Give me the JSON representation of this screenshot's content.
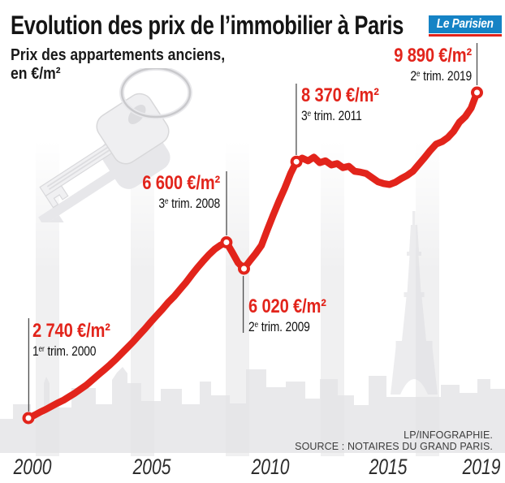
{
  "header": {
    "title": "Evolution des prix de l’immobilier à Paris",
    "subtitle_line1": "Prix des appartements anciens,",
    "subtitle_line2": "en €/m²",
    "logo_text": "Le Parisien"
  },
  "annotations": [
    {
      "price": "2 740 €/m²",
      "num": "1",
      "sup": "er",
      "rest": " trim. 2000"
    },
    {
      "price": "6 600 €/m²",
      "num": "3",
      "sup": "e",
      "rest": " trim. 2008"
    },
    {
      "price": "6 020 €/m²",
      "num": "2",
      "sup": "e",
      "rest": " trim. 2009"
    },
    {
      "price": "8 370 €/m²",
      "num": "3",
      "sup": "e",
      "rest": " trim. 2011"
    },
    {
      "price": "9 890 €/m²",
      "num": "2",
      "sup": "e",
      "rest": " trim. 2019"
    }
  ],
  "axis": {
    "labels": [
      "2000",
      "2005",
      "2010",
      "2015",
      "2019"
    ]
  },
  "credits": {
    "line1": "LP/INFOGRAPHIE.",
    "line2": "SOURCE : NOTAIRES DU GRAND PARIS."
  },
  "colors": {
    "accent_red": "#e2241b",
    "logo_blue": "#1583c5",
    "text_dark": "#151515",
    "leader_line": "#4d4d4d",
    "stripe_gray": "#f0f0f1",
    "skyline_gray": "#e3e3e6"
  },
  "illustrations": {
    "keys": "house-keys-with-ring",
    "background": "paris-skyline-with-eiffel-tower"
  },
  "chart_data": {
    "type": "line",
    "title": "Evolution des prix de l’immobilier à Paris",
    "subtitle": "Prix des appartements anciens, en €/m²",
    "ylabel": "€/m²",
    "x_range": [
      2000,
      2019.25
    ],
    "y_range_displayed": [
      2740,
      9890
    ],
    "grid": false,
    "legend": "none",
    "xticks": [
      "2000",
      "2005",
      "2010",
      "2015",
      "2019"
    ],
    "source": "SOURCE : NOTAIRES DU GRAND PARIS.",
    "line_color": "#e2241b",
    "annotated_points": [
      {
        "label": "1er trim. 2000",
        "x": 2000.0,
        "y": 2740
      },
      {
        "label": "3e trim. 2008",
        "x": 2008.5,
        "y": 6600
      },
      {
        "label": "2e trim. 2009",
        "x": 2009.25,
        "y": 6020
      },
      {
        "label": "3e trim. 2011",
        "x": 2011.5,
        "y": 8370
      },
      {
        "label": "2e trim. 2019",
        "x": 2019.25,
        "y": 9890
      }
    ],
    "series": [
      {
        "name": "Prix des appartements anciens (€/m²)",
        "points": [
          [
            2000.0,
            2740
          ],
          [
            2000.25,
            2800
          ],
          [
            2000.5,
            2870
          ],
          [
            2000.75,
            2930
          ],
          [
            2001.0,
            3000
          ],
          [
            2001.25,
            3070
          ],
          [
            2001.5,
            3130
          ],
          [
            2001.75,
            3210
          ],
          [
            2002.0,
            3290
          ],
          [
            2002.25,
            3380
          ],
          [
            2002.5,
            3470
          ],
          [
            2002.75,
            3580
          ],
          [
            2003.0,
            3690
          ],
          [
            2003.25,
            3800
          ],
          [
            2003.5,
            3910
          ],
          [
            2003.75,
            4030
          ],
          [
            2004.0,
            4160
          ],
          [
            2004.25,
            4290
          ],
          [
            2004.5,
            4420
          ],
          [
            2004.75,
            4560
          ],
          [
            2005.0,
            4700
          ],
          [
            2005.25,
            4850
          ],
          [
            2005.5,
            4990
          ],
          [
            2005.75,
            5130
          ],
          [
            2006.0,
            5280
          ],
          [
            2006.25,
            5410
          ],
          [
            2006.5,
            5560
          ],
          [
            2006.75,
            5710
          ],
          [
            2007.0,
            5880
          ],
          [
            2007.25,
            6040
          ],
          [
            2007.5,
            6190
          ],
          [
            2007.75,
            6330
          ],
          [
            2008.0,
            6450
          ],
          [
            2008.25,
            6540
          ],
          [
            2008.5,
            6600
          ],
          [
            2008.75,
            6380
          ],
          [
            2009.0,
            6150
          ],
          [
            2009.25,
            6020
          ],
          [
            2009.5,
            6190
          ],
          [
            2009.75,
            6350
          ],
          [
            2010.0,
            6530
          ],
          [
            2010.25,
            6870
          ],
          [
            2010.5,
            7190
          ],
          [
            2010.75,
            7500
          ],
          [
            2011.0,
            7790
          ],
          [
            2011.25,
            8110
          ],
          [
            2011.5,
            8370
          ],
          [
            2011.75,
            8450
          ],
          [
            2012.0,
            8390
          ],
          [
            2012.25,
            8470
          ],
          [
            2012.5,
            8350
          ],
          [
            2012.75,
            8390
          ],
          [
            2013.0,
            8300
          ],
          [
            2013.25,
            8330
          ],
          [
            2013.5,
            8240
          ],
          [
            2013.75,
            8270
          ],
          [
            2014.0,
            8160
          ],
          [
            2014.25,
            8140
          ],
          [
            2014.5,
            8110
          ],
          [
            2014.75,
            8020
          ],
          [
            2015.0,
            7930
          ],
          [
            2015.25,
            7890
          ],
          [
            2015.5,
            7870
          ],
          [
            2015.75,
            7920
          ],
          [
            2016.0,
            8000
          ],
          [
            2016.25,
            8070
          ],
          [
            2016.5,
            8160
          ],
          [
            2016.75,
            8310
          ],
          [
            2017.0,
            8460
          ],
          [
            2017.25,
            8620
          ],
          [
            2017.5,
            8760
          ],
          [
            2017.75,
            8810
          ],
          [
            2018.0,
            8900
          ],
          [
            2018.25,
            9040
          ],
          [
            2018.5,
            9240
          ],
          [
            2018.75,
            9360
          ],
          [
            2019.0,
            9550
          ],
          [
            2019.25,
            9890
          ]
        ]
      }
    ]
  }
}
